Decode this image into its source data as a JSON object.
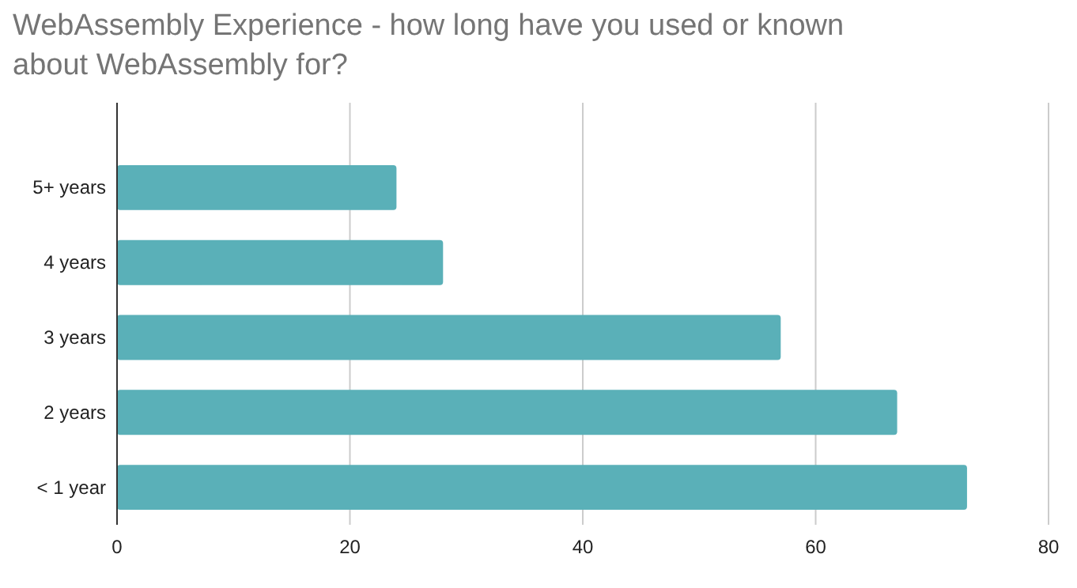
{
  "chart_data": {
    "type": "bar",
    "orientation": "horizontal",
    "title": "WebAssembly Experience - how long have you used or known about WebAssembly for?",
    "categories": [
      "5+ years",
      "4 years",
      "3 years",
      "2 years",
      "< 1 year"
    ],
    "values": [
      24,
      28,
      57,
      67,
      73
    ],
    "color": "#5ab0b8",
    "xlim": [
      0,
      80
    ],
    "xticks": [
      0,
      20,
      40,
      60,
      80
    ],
    "grid": "x"
  }
}
